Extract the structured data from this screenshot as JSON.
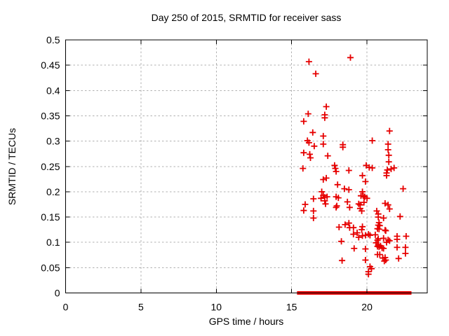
{
  "chart_data": {
    "type": "scatter",
    "title": "Day 250 of 2015, SRMTID for receiver sass",
    "xlabel": "GPS time / hours",
    "ylabel": "SRMTID / TECUs",
    "xlim": [
      0,
      24
    ],
    "ylim": [
      0,
      0.5
    ],
    "x_tick_values": [
      0,
      5,
      10,
      15,
      20
    ],
    "x_tick_labels": [
      "0",
      "5",
      "10",
      "15",
      "20"
    ],
    "y_tick_values": [
      0,
      0.05,
      0.1,
      0.15,
      0.2,
      0.25,
      0.3,
      0.35,
      0.4,
      0.45,
      0.5
    ],
    "y_tick_labels": [
      "0",
      "0.05",
      "0.1",
      "0.15",
      "0.2",
      "0.25",
      "0.3",
      "0.35",
      "0.4",
      "0.45",
      "0.5"
    ],
    "grid": true,
    "grid_style": "dashed-gray-at-major-ticks",
    "legend": "none",
    "marker": "plus",
    "marker_color": "#e60000",
    "grid_color": "#b0b0b0",
    "series": [
      {
        "name": "SRMTID",
        "points": [
          [
            18.9,
            0.465
          ],
          [
            16.15,
            0.457
          ],
          [
            16.6,
            0.433
          ],
          [
            17.3,
            0.368
          ],
          [
            16.1,
            0.354
          ],
          [
            17.2,
            0.352
          ],
          [
            17.2,
            0.346
          ],
          [
            15.8,
            0.339
          ],
          [
            21.5,
            0.32
          ],
          [
            16.4,
            0.317
          ],
          [
            17.1,
            0.31
          ],
          [
            16.05,
            0.301
          ],
          [
            20.35,
            0.301
          ],
          [
            16.15,
            0.297
          ],
          [
            17.1,
            0.294
          ],
          [
            21.4,
            0.294
          ],
          [
            16.5,
            0.29
          ],
          [
            18.4,
            0.293
          ],
          [
            18.4,
            0.288
          ],
          [
            21.4,
            0.283
          ],
          [
            15.8,
            0.277
          ],
          [
            16.2,
            0.274
          ],
          [
            16.25,
            0.267
          ],
          [
            17.4,
            0.271
          ],
          [
            21.45,
            0.272
          ],
          [
            21.45,
            0.259
          ],
          [
            17.85,
            0.252
          ],
          [
            19.95,
            0.252
          ],
          [
            20.15,
            0.248
          ],
          [
            20.35,
            0.247
          ],
          [
            15.75,
            0.246
          ],
          [
            17.9,
            0.246
          ],
          [
            17.95,
            0.24
          ],
          [
            18.8,
            0.242
          ],
          [
            21.35,
            0.243
          ],
          [
            21.6,
            0.245
          ],
          [
            21.8,
            0.247
          ],
          [
            21.3,
            0.237
          ],
          [
            19.7,
            0.232
          ],
          [
            21.3,
            0.232
          ],
          [
            17.3,
            0.227
          ],
          [
            17.1,
            0.224
          ],
          [
            19.9,
            0.22
          ],
          [
            18.05,
            0.214
          ],
          [
            18.5,
            0.206
          ],
          [
            22.4,
            0.206
          ],
          [
            18.8,
            0.204
          ],
          [
            17.0,
            0.2
          ],
          [
            19.7,
            0.2
          ],
          [
            17.1,
            0.193
          ],
          [
            19.6,
            0.192
          ],
          [
            19.75,
            0.192
          ],
          [
            17.35,
            0.19
          ],
          [
            17.95,
            0.19
          ],
          [
            19.85,
            0.19
          ],
          [
            17.2,
            0.189
          ],
          [
            18.1,
            0.188
          ],
          [
            16.95,
            0.187
          ],
          [
            20.0,
            0.187
          ],
          [
            16.45,
            0.186
          ],
          [
            17.2,
            0.182
          ],
          [
            18.7,
            0.18
          ],
          [
            19.8,
            0.179
          ],
          [
            21.2,
            0.177
          ],
          [
            17.25,
            0.176
          ],
          [
            19.45,
            0.176
          ],
          [
            15.9,
            0.175
          ],
          [
            19.55,
            0.174
          ],
          [
            21.4,
            0.174
          ],
          [
            18.0,
            0.172
          ],
          [
            18.85,
            0.169
          ],
          [
            17.95,
            0.169
          ],
          [
            19.55,
            0.167
          ],
          [
            21.5,
            0.166
          ],
          [
            15.8,
            0.163
          ],
          [
            16.45,
            0.162
          ],
          [
            19.65,
            0.162
          ],
          [
            20.65,
            0.162
          ],
          [
            20.75,
            0.156
          ],
          [
            22.2,
            0.151
          ],
          [
            20.75,
            0.15
          ],
          [
            16.45,
            0.148
          ],
          [
            21.1,
            0.148
          ],
          [
            20.8,
            0.139
          ],
          [
            18.8,
            0.138
          ],
          [
            18.55,
            0.135
          ],
          [
            20.75,
            0.134
          ],
          [
            20.85,
            0.133
          ],
          [
            18.15,
            0.13
          ],
          [
            19.7,
            0.131
          ],
          [
            18.85,
            0.129
          ],
          [
            19.1,
            0.129
          ],
          [
            20.7,
            0.127
          ],
          [
            20.8,
            0.126
          ],
          [
            19.65,
            0.125
          ],
          [
            21.2,
            0.124
          ],
          [
            21.25,
            0.123
          ],
          [
            19.35,
            0.119
          ],
          [
            19.1,
            0.116
          ],
          [
            20.1,
            0.116
          ],
          [
            20.55,
            0.115
          ],
          [
            19.9,
            0.114
          ],
          [
            20.2,
            0.114
          ],
          [
            19.7,
            0.113
          ],
          [
            22.0,
            0.112
          ],
          [
            22.6,
            0.112
          ],
          [
            19.45,
            0.11
          ],
          [
            21.1,
            0.108
          ],
          [
            20.75,
            0.107
          ],
          [
            22.0,
            0.106
          ],
          [
            21.4,
            0.105
          ],
          [
            20.7,
            0.104
          ],
          [
            21.5,
            0.103
          ],
          [
            18.3,
            0.102
          ],
          [
            21.3,
            0.1
          ],
          [
            20.6,
            0.099
          ],
          [
            20.75,
            0.095
          ],
          [
            20.9,
            0.093
          ],
          [
            20.7,
            0.092
          ],
          [
            20.8,
            0.091
          ],
          [
            22.0,
            0.09
          ],
          [
            22.55,
            0.09
          ],
          [
            21.0,
            0.089
          ],
          [
            19.15,
            0.088
          ],
          [
            21.1,
            0.088
          ],
          [
            19.9,
            0.087
          ],
          [
            22.55,
            0.078
          ],
          [
            20.7,
            0.076
          ],
          [
            20.85,
            0.076
          ],
          [
            21.2,
            0.07
          ],
          [
            21.05,
            0.069
          ],
          [
            22.1,
            0.068
          ],
          [
            21.25,
            0.065
          ],
          [
            19.9,
            0.065
          ],
          [
            18.35,
            0.064
          ],
          [
            21.15,
            0.063
          ],
          [
            20.2,
            0.052
          ],
          [
            20.3,
            0.048
          ],
          [
            20.1,
            0.042
          ],
          [
            20.1,
            0.037
          ]
        ]
      }
    ],
    "zero_value_segments": [
      [
        15.45,
        15.68
      ],
      [
        15.8,
        15.88
      ],
      [
        15.92,
        16.62
      ],
      [
        16.8,
        17.03
      ],
      [
        17.12,
        17.46
      ],
      [
        17.55,
        17.86
      ],
      [
        17.93,
        18.48
      ],
      [
        18.58,
        19.64
      ],
      [
        19.72,
        19.84
      ],
      [
        19.92,
        20.26
      ],
      [
        20.34,
        21.04
      ],
      [
        21.15,
        22.59
      ],
      [
        22.7,
        22.86
      ]
    ]
  }
}
